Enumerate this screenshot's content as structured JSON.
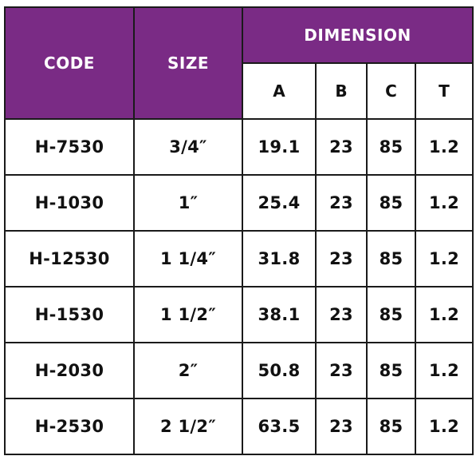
{
  "colors": {
    "header_bg": "#7a2b85",
    "header_text": "#ffffff",
    "border": "#1a1a1a",
    "cell_text": "#111111"
  },
  "headers": {
    "code": "CODE",
    "size": "SIZE",
    "dimension": "DIMENSION",
    "sub": [
      "A",
      "B",
      "C",
      "T"
    ]
  },
  "rows": [
    {
      "code": "H-7530",
      "size": "3/4″",
      "a": "19.1",
      "b": "23",
      "c": "85",
      "t": "1.2"
    },
    {
      "code": "H-1030",
      "size": "1″",
      "a": "25.4",
      "b": "23",
      "c": "85",
      "t": "1.2"
    },
    {
      "code": "H-12530",
      "size": "1 1/4″",
      "a": "31.8",
      "b": "23",
      "c": "85",
      "t": "1.2"
    },
    {
      "code": "H-1530",
      "size": "1 1/2″",
      "a": "38.1",
      "b": "23",
      "c": "85",
      "t": "1.2"
    },
    {
      "code": "H-2030",
      "size": "2″",
      "a": "50.8",
      "b": "23",
      "c": "85",
      "t": "1.2"
    },
    {
      "code": "H-2530",
      "size": "2 1/2″",
      "a": "63.5",
      "b": "23",
      "c": "85",
      "t": "1.2"
    }
  ]
}
